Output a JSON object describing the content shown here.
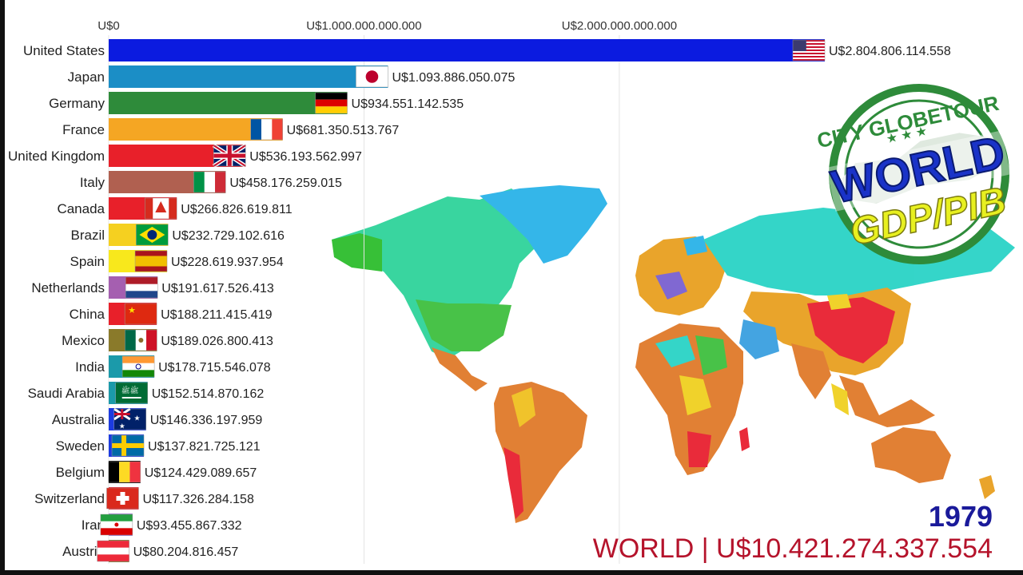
{
  "chart_data": {
    "type": "bar",
    "orientation": "horizontal",
    "xlim": [
      0,
      2804806114558
    ],
    "tick_labels": [
      "U$0",
      "U$1.000.000.000.000",
      "U$2.000.000.000.000"
    ],
    "tick_values": [
      0,
      1000000000000,
      2000000000000
    ],
    "categories": [
      "United States",
      "Japan",
      "Germany",
      "France",
      "United Kingdom",
      "Italy",
      "Canada",
      "Brazil",
      "Spain",
      "Netherlands",
      "China",
      "Mexico",
      "India",
      "Saudi Arabia",
      "Australia",
      "Sweden",
      "Belgium",
      "Switzerland",
      "Iran",
      "Austria"
    ],
    "values": [
      2804806114558,
      1093886050075,
      934551142535,
      681350513767,
      536193562997,
      458176259015,
      266826619811,
      232729102616,
      228619937954,
      191617526413,
      188211415419,
      189026800413,
      178715546078,
      152514870162,
      146336197959,
      137821725121,
      124429089657,
      117326284158,
      93455867332,
      80204816457
    ],
    "value_labels": [
      "U$2.804.806.114.558",
      "U$1.093.886.050.075",
      "U$934.551.142.535",
      "U$681.350.513.767",
      "U$536.193.562.997",
      "U$458.176.259.015",
      "U$266.826.619.811",
      "U$232.729.102.616",
      "U$228.619.937.954",
      "U$191.617.526.413",
      "U$188.211.415.419",
      "U$189.026.800.413",
      "U$178.715.546.078",
      "U$152.514.870.162",
      "U$146.336.197.959",
      "U$137.821.725.121",
      "U$124.429.089.657",
      "U$117.326.284.158",
      "U$93.455.867.332",
      "U$80.204.816.457"
    ],
    "colors": [
      "#0b1be0",
      "#1b8ec6",
      "#2e8b3a",
      "#f5a623",
      "#e8202a",
      "#b06050",
      "#e8202a",
      "#f5d020",
      "#f8e81c",
      "#a55fb0",
      "#e8202a",
      "#8a7a2a",
      "#1b9aaa",
      "#1b9aaa",
      "#1c3be0",
      "#1c3be0",
      "#000000",
      "#e8202a",
      "#9a7ad0",
      "#7a7a30"
    ],
    "flags": [
      "us",
      "jp",
      "de",
      "fr",
      "gb",
      "it",
      "ca",
      "br",
      "es",
      "nl",
      "cn",
      "mx",
      "in",
      "sa",
      "au",
      "se",
      "be",
      "ch",
      "ir",
      "at"
    ]
  },
  "year": "1979",
  "world_total": "WORLD | U$10.421.274.337.554",
  "logo": {
    "top_text": "CITY GLOBETOUR",
    "main_text": "WORLD",
    "sub_text": "GDP/PIB"
  }
}
